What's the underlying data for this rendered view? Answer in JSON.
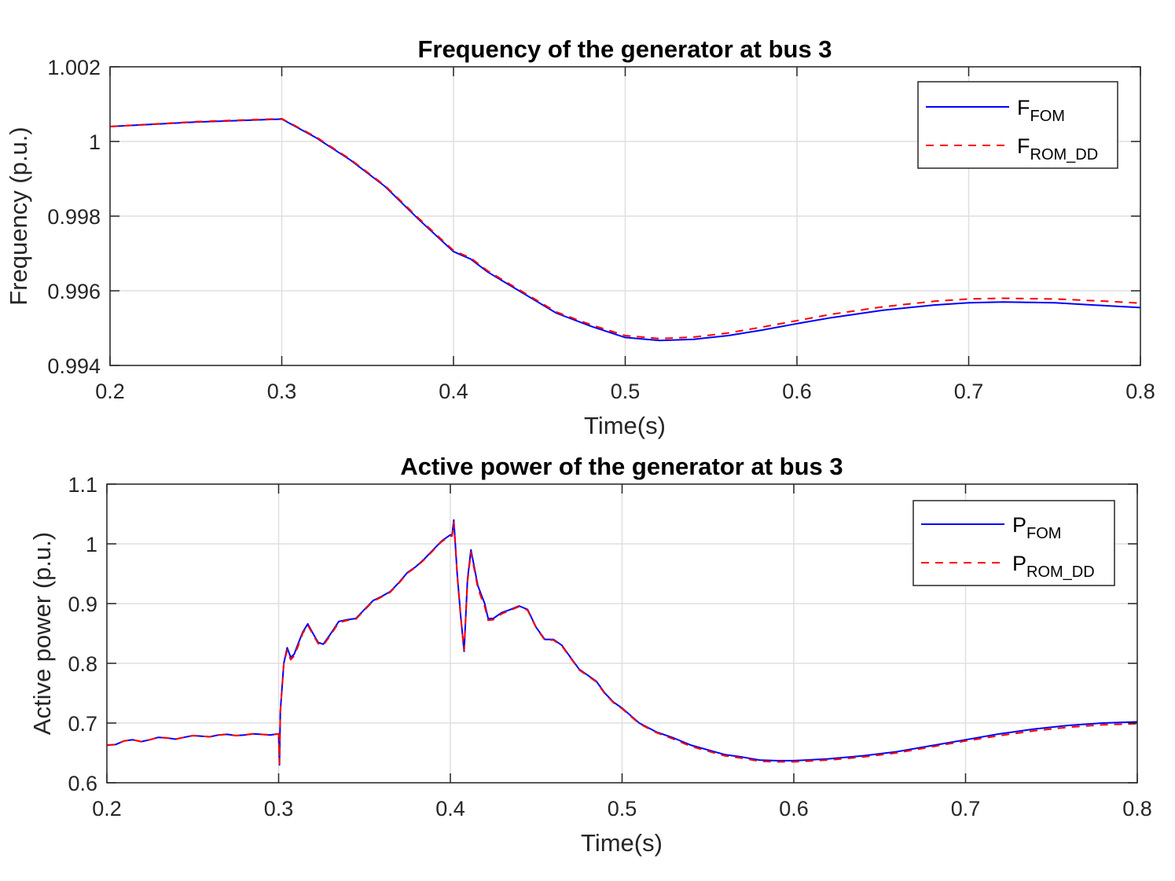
{
  "chart_data": [
    {
      "type": "line",
      "title": "Frequency of the generator at bus 3",
      "xlabel": "Time(s)",
      "ylabel": "Frequency (p.u.)",
      "xlim": [
        0.2,
        0.8
      ],
      "ylim": [
        0.994,
        1.002
      ],
      "xticks": [
        "0.2",
        "0.3",
        "0.4",
        "0.5",
        "0.6",
        "0.7",
        "0.8"
      ],
      "yticks": [
        "0.994",
        "0.996",
        "0.998",
        "1",
        "1.002"
      ],
      "grid": true,
      "legend_position": "top-right",
      "series": [
        {
          "name": "F",
          "name_sub": "FOM",
          "color": "#0000ff",
          "style": "solid",
          "x": [
            0.2,
            0.25,
            0.3,
            0.32,
            0.34,
            0.36,
            0.38,
            0.4,
            0.405,
            0.41,
            0.42,
            0.44,
            0.46,
            0.48,
            0.5,
            0.52,
            0.54,
            0.56,
            0.58,
            0.6,
            0.62,
            0.65,
            0.68,
            0.7,
            0.72,
            0.75,
            0.78,
            0.8
          ],
          "y": [
            1.0004,
            1.00052,
            1.0006,
            1.0001,
            0.9995,
            0.9988,
            0.9979,
            0.99705,
            0.99695,
            0.99685,
            0.9965,
            0.99595,
            0.9954,
            0.99505,
            0.99475,
            0.99467,
            0.9947,
            0.9948,
            0.99495,
            0.99512,
            0.99528,
            0.99548,
            0.99562,
            0.99568,
            0.9957,
            0.99568,
            0.9956,
            0.99555
          ]
        },
        {
          "name": "F",
          "name_sub": "ROM_DD",
          "color": "#ff0000",
          "style": "dashed",
          "x": [
            0.2,
            0.25,
            0.3,
            0.32,
            0.34,
            0.36,
            0.38,
            0.4,
            0.405,
            0.41,
            0.42,
            0.44,
            0.46,
            0.48,
            0.5,
            0.52,
            0.54,
            0.56,
            0.58,
            0.6,
            0.62,
            0.65,
            0.68,
            0.7,
            0.72,
            0.75,
            0.78,
            0.8
          ],
          "y": [
            1.0004,
            1.00053,
            1.00061,
            1.00012,
            0.99952,
            0.99882,
            0.99793,
            0.99708,
            0.99698,
            0.99688,
            0.99653,
            0.99598,
            0.99543,
            0.99509,
            0.9948,
            0.99472,
            0.99476,
            0.99487,
            0.99503,
            0.9952,
            0.99537,
            0.99557,
            0.99572,
            0.99578,
            0.9958,
            0.99578,
            0.99572,
            0.99567
          ]
        }
      ]
    },
    {
      "type": "line",
      "title": "Active power of the generator at bus 3",
      "xlabel": "Time(s)",
      "ylabel": "Active power (p.u.)",
      "xlim": [
        0.2,
        0.8
      ],
      "ylim": [
        0.6,
        1.1
      ],
      "xticks": [
        "0.2",
        "0.3",
        "0.4",
        "0.5",
        "0.6",
        "0.7",
        "0.8"
      ],
      "yticks": [
        "0.6",
        "0.7",
        "0.8",
        "0.9",
        "1",
        "1.1"
      ],
      "grid": true,
      "legend_position": "top-right",
      "series": [
        {
          "name": "P",
          "name_sub": "FOM",
          "color": "#0000ff",
          "style": "solid",
          "x": [
            0.2,
            0.205,
            0.21,
            0.215,
            0.22,
            0.225,
            0.23,
            0.235,
            0.24,
            0.245,
            0.25,
            0.255,
            0.26,
            0.265,
            0.27,
            0.275,
            0.28,
            0.285,
            0.29,
            0.295,
            0.3,
            0.3005,
            0.301,
            0.303,
            0.305,
            0.307,
            0.309,
            0.311,
            0.314,
            0.317,
            0.32,
            0.323,
            0.326,
            0.33,
            0.335,
            0.34,
            0.345,
            0.35,
            0.355,
            0.36,
            0.365,
            0.37,
            0.375,
            0.38,
            0.385,
            0.39,
            0.395,
            0.4,
            0.401,
            0.402,
            0.404,
            0.406,
            0.408,
            0.41,
            0.412,
            0.414,
            0.416,
            0.418,
            0.42,
            0.422,
            0.425,
            0.43,
            0.435,
            0.44,
            0.445,
            0.45,
            0.455,
            0.46,
            0.465,
            0.47,
            0.475,
            0.48,
            0.485,
            0.49,
            0.495,
            0.5,
            0.51,
            0.52,
            0.53,
            0.54,
            0.55,
            0.56,
            0.57,
            0.58,
            0.59,
            0.6,
            0.62,
            0.64,
            0.66,
            0.68,
            0.7,
            0.72,
            0.74,
            0.76,
            0.78,
            0.8
          ],
          "y": [
            0.663,
            0.664,
            0.67,
            0.672,
            0.669,
            0.672,
            0.676,
            0.675,
            0.673,
            0.676,
            0.679,
            0.678,
            0.677,
            0.68,
            0.681,
            0.679,
            0.68,
            0.682,
            0.681,
            0.68,
            0.682,
            0.63,
            0.72,
            0.8,
            0.826,
            0.81,
            0.815,
            0.83,
            0.852,
            0.866,
            0.85,
            0.835,
            0.832,
            0.848,
            0.87,
            0.873,
            0.875,
            0.89,
            0.905,
            0.912,
            0.92,
            0.935,
            0.952,
            0.962,
            0.975,
            0.99,
            1.005,
            1.015,
            1.015,
            1.04,
            0.95,
            0.88,
            0.82,
            0.94,
            0.99,
            0.96,
            0.93,
            0.915,
            0.9,
            0.875,
            0.875,
            0.885,
            0.89,
            0.896,
            0.89,
            0.86,
            0.84,
            0.84,
            0.83,
            0.81,
            0.79,
            0.78,
            0.77,
            0.75,
            0.735,
            0.725,
            0.7,
            0.685,
            0.675,
            0.663,
            0.655,
            0.647,
            0.643,
            0.638,
            0.637,
            0.637,
            0.64,
            0.645,
            0.652,
            0.662,
            0.672,
            0.682,
            0.69,
            0.696,
            0.7,
            0.702
          ]
        },
        {
          "name": "P",
          "name_sub": "ROM_DD",
          "color": "#ff0000",
          "style": "dashed",
          "x": [
            0.2,
            0.205,
            0.21,
            0.215,
            0.22,
            0.225,
            0.23,
            0.235,
            0.24,
            0.245,
            0.25,
            0.255,
            0.26,
            0.265,
            0.27,
            0.275,
            0.28,
            0.285,
            0.29,
            0.295,
            0.3,
            0.3005,
            0.301,
            0.303,
            0.305,
            0.307,
            0.309,
            0.311,
            0.314,
            0.317,
            0.32,
            0.323,
            0.326,
            0.33,
            0.335,
            0.34,
            0.345,
            0.35,
            0.355,
            0.36,
            0.365,
            0.37,
            0.375,
            0.38,
            0.385,
            0.39,
            0.395,
            0.4,
            0.401,
            0.402,
            0.404,
            0.406,
            0.408,
            0.41,
            0.412,
            0.414,
            0.416,
            0.418,
            0.42,
            0.422,
            0.425,
            0.43,
            0.435,
            0.44,
            0.445,
            0.45,
            0.455,
            0.46,
            0.465,
            0.47,
            0.475,
            0.48,
            0.485,
            0.49,
            0.495,
            0.5,
            0.51,
            0.52,
            0.53,
            0.54,
            0.55,
            0.56,
            0.57,
            0.58,
            0.59,
            0.6,
            0.62,
            0.64,
            0.66,
            0.68,
            0.7,
            0.72,
            0.74,
            0.76,
            0.78,
            0.8
          ],
          "y": [
            0.663,
            0.664,
            0.67,
            0.672,
            0.669,
            0.672,
            0.676,
            0.675,
            0.673,
            0.676,
            0.679,
            0.678,
            0.677,
            0.68,
            0.681,
            0.679,
            0.68,
            0.682,
            0.681,
            0.68,
            0.682,
            0.632,
            0.718,
            0.8,
            0.822,
            0.806,
            0.812,
            0.826,
            0.85,
            0.864,
            0.848,
            0.833,
            0.83,
            0.846,
            0.868,
            0.872,
            0.874,
            0.889,
            0.904,
            0.911,
            0.919,
            0.934,
            0.951,
            0.961,
            0.974,
            0.989,
            1.004,
            1.013,
            1.013,
            1.036,
            0.948,
            0.878,
            0.822,
            0.936,
            0.986,
            0.956,
            0.926,
            0.91,
            0.895,
            0.872,
            0.873,
            0.883,
            0.889,
            0.895,
            0.889,
            0.859,
            0.839,
            0.839,
            0.829,
            0.809,
            0.789,
            0.779,
            0.769,
            0.749,
            0.734,
            0.724,
            0.699,
            0.684,
            0.673,
            0.661,
            0.653,
            0.645,
            0.641,
            0.636,
            0.635,
            0.635,
            0.638,
            0.643,
            0.65,
            0.66,
            0.67,
            0.679,
            0.687,
            0.693,
            0.697,
            0.699
          ]
        }
      ]
    }
  ]
}
